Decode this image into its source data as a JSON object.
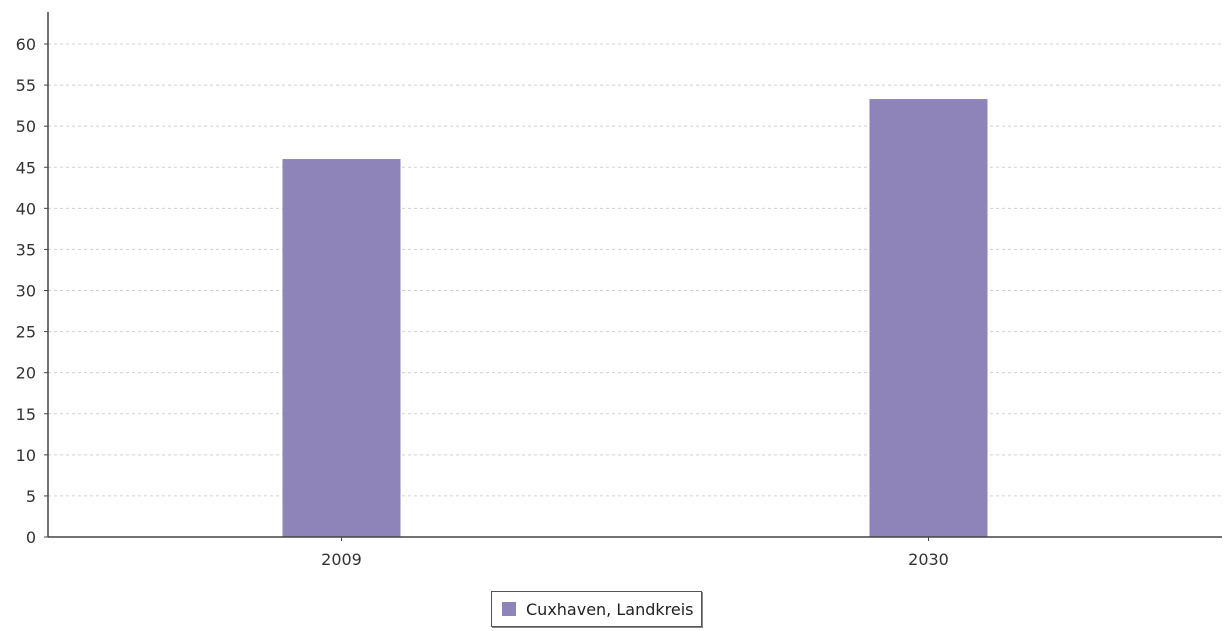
{
  "chart_data": {
    "type": "bar",
    "categories": [
      "2009",
      "2030"
    ],
    "series": [
      {
        "name": "Cuxhaven, Landkreis",
        "values": [
          46,
          53.3
        ]
      }
    ],
    "title": "",
    "xlabel": "",
    "ylabel": "",
    "ylim": [
      0,
      60
    ],
    "yticks": [
      "0",
      "5",
      "10",
      "15",
      "20",
      "25",
      "30",
      "35",
      "40",
      "45",
      "50",
      "55",
      "60"
    ],
    "grid": true,
    "legend_position": "bottom-center"
  },
  "colors": {
    "bar": "#8f84ba",
    "grid": "#d0d0d0",
    "axis": "#444444"
  }
}
